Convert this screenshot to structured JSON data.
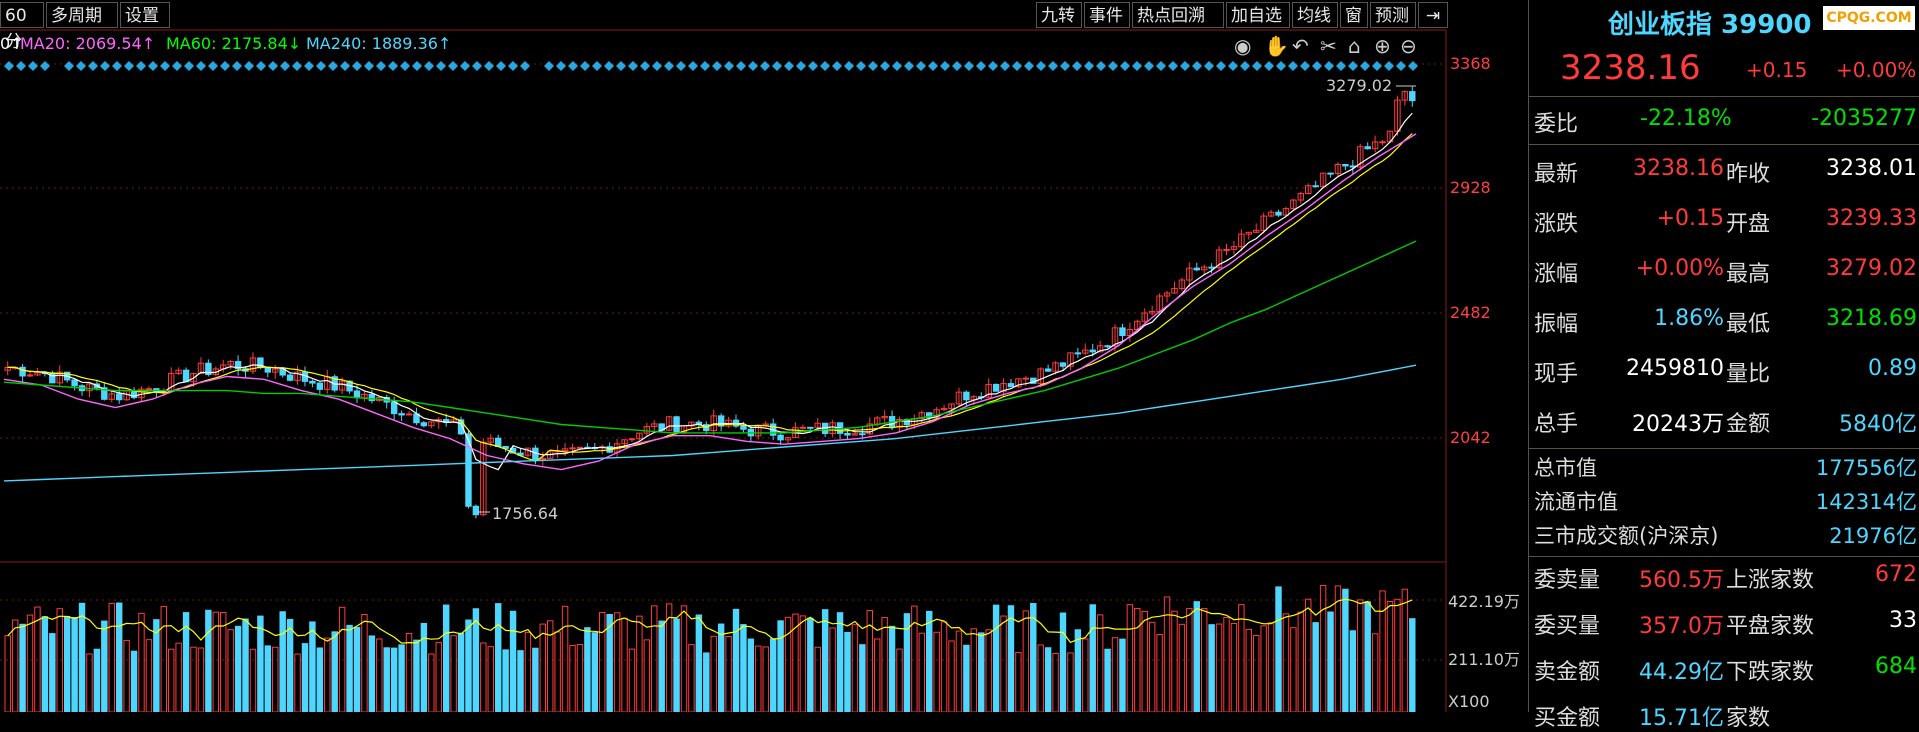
{
  "toolbar": {
    "period_tab": "60分",
    "multi_period": "多周期",
    "settings": "设置",
    "right_buttons": [
      "九转",
      "事件",
      "热点回溯",
      "加自选",
      "均线",
      "窗",
      "预测"
    ]
  },
  "ma_legend": {
    "ma20": "MA20: 2069.54↑",
    "ma60": "MA60: 2175.84↓",
    "ma240": "MA240: 1889.36↑",
    "leading": "0↑",
    "colors": {
      "ma5": "#ffffff",
      "ma10": "#ffff00",
      "ma20": "#ff66ff",
      "ma60": "#00ff00",
      "ma240": "#4fd6ff"
    }
  },
  "price_axis": [
    "3368",
    "2928",
    "2482",
    "2042"
  ],
  "volume_axis": [
    "422.19万",
    "211.10万",
    "X100"
  ],
  "chart_labels": {
    "high": "3279.02",
    "low": "1756.64"
  },
  "chart_data": {
    "type": "candlestick",
    "title": "",
    "y_range": [
      1600,
      3400
    ],
    "ma_series": {
      "ma20": [
        2250,
        2230,
        2180,
        2150,
        2180,
        2230,
        2260,
        2250,
        2210,
        2180,
        2130,
        2080,
        2040,
        1980,
        1950,
        1930,
        1960,
        2020,
        2050,
        2050,
        2030,
        2020,
        2030,
        2040,
        2060,
        2100,
        2160,
        2200,
        2230,
        2290,
        2370,
        2480,
        2580,
        2660,
        2760,
        2850,
        2950,
        3040,
        3120
      ],
      "ma60": [
        2240,
        2230,
        2220,
        2210,
        2210,
        2210,
        2210,
        2200,
        2200,
        2190,
        2180,
        2170,
        2150,
        2130,
        2110,
        2090,
        2080,
        2070,
        2060,
        2060,
        2060,
        2060,
        2070,
        2080,
        2100,
        2120,
        2150,
        2180,
        2210,
        2250,
        2290,
        2340,
        2390,
        2450,
        2500,
        2560,
        2620,
        2680,
        2740
      ],
      "ma240": [
        1890,
        1895,
        1900,
        1905,
        1910,
        1915,
        1920,
        1925,
        1930,
        1935,
        1940,
        1945,
        1950,
        1955,
        1960,
        1965,
        1970,
        1975,
        1980,
        1990,
        2000,
        2010,
        2020,
        2030,
        2040,
        2055,
        2070,
        2085,
        2100,
        2115,
        2130,
        2150,
        2170,
        2190,
        2210,
        2230,
        2250,
        2275,
        2300
      ]
    },
    "volume_range_wan": [
      0,
      422.19
    ]
  },
  "quote": {
    "name": "创业板指 39900",
    "price": "3238.16",
    "change": "+0.15",
    "change_pct": "+0.00%",
    "weibi_label": "委比",
    "weibi": "-22.18%",
    "weicha": "-2035277",
    "rows": [
      {
        "l1": "最新",
        "v1": "3238.16",
        "l2": "昨收",
        "v2": "3238.01",
        "c1": "red",
        "c2": "white"
      },
      {
        "l1": "涨跌",
        "v1": "+0.15",
        "l2": "开盘",
        "v2": "3239.33",
        "c1": "red",
        "c2": "red"
      },
      {
        "l1": "涨幅",
        "v1": "+0.00%",
        "l2": "最高",
        "v2": "3279.02",
        "c1": "red",
        "c2": "red"
      },
      {
        "l1": "振幅",
        "v1": "1.86%",
        "l2": "最低",
        "v2": "3218.69",
        "c1": "cyan",
        "c2": "green"
      },
      {
        "l1": "现手",
        "v1": "2459810",
        "l2": "量比",
        "v2": "0.89",
        "c1": "white",
        "c2": "cyan"
      },
      {
        "l1": "总手",
        "v1": "20243万",
        "l2": "金额",
        "v2": "5840亿",
        "c1": "white",
        "c2": "cyan"
      }
    ],
    "market": [
      {
        "label": "总市值",
        "value": "177556亿"
      },
      {
        "label": "流通市值",
        "value": "142314亿"
      },
      {
        "label": "三市成交额(沪深京)",
        "value": "21976亿"
      }
    ],
    "orders": [
      {
        "l1": "委卖量",
        "v1": "560.5万",
        "l2": "上涨家数",
        "v2": "672",
        "c1": "red",
        "c2": "red"
      },
      {
        "l1": "委买量",
        "v1": "357.0万",
        "l2": "平盘家数",
        "v2": "33",
        "c1": "red",
        "c2": "white"
      },
      {
        "l1": "卖金额",
        "v1": "44.29亿",
        "l2": "下跌家数",
        "v2": "684",
        "c1": "cyan",
        "c2": "green"
      },
      {
        "l1": "买金额",
        "v1": "15.71亿",
        "l2": "家数",
        "v2": "",
        "c1": "cyan",
        "c2": "white"
      }
    ]
  },
  "watermark": "CPQG.COM"
}
